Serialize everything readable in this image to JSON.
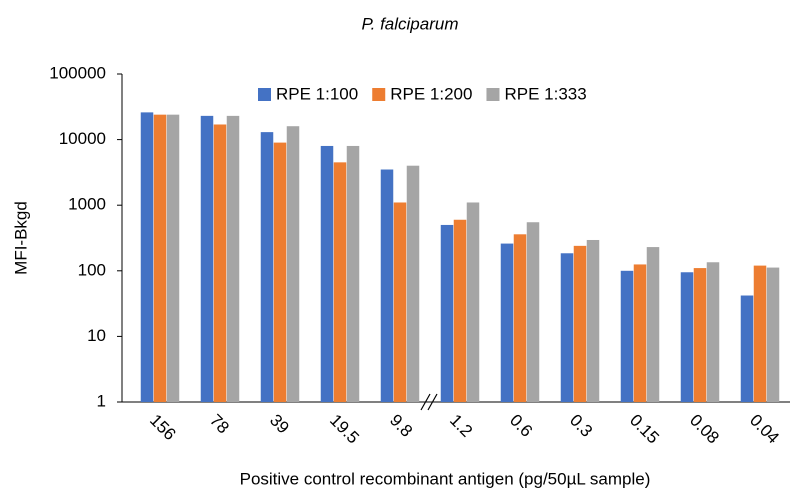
{
  "chart_data": {
    "type": "bar",
    "title": "P. falciparum",
    "x_label": "Positive control recombinant antigen (pg/50µL sample)",
    "y_label": "MFI-Bkgd",
    "categories": [
      "156",
      "78",
      "39",
      "19.5",
      "9.8",
      "1.2",
      "0.6",
      "0.3",
      "0.15",
      "0.08",
      "0.04"
    ],
    "series": [
      {
        "name": "RPE 1:100",
        "color": "#4472c4",
        "values": [
          26000,
          23000,
          13000,
          8000,
          3500,
          500,
          260,
          185,
          100,
          95,
          42
        ]
      },
      {
        "name": "RPE 1:200",
        "color": "#ed7d31",
        "values": [
          24000,
          17000,
          9000,
          4500,
          1100,
          600,
          360,
          240,
          125,
          110,
          120
        ]
      },
      {
        "name": "RPE 1:333",
        "color": "#a5a5a5",
        "values": [
          24000,
          23000,
          16000,
          8000,
          4000,
          1100,
          550,
          295,
          230,
          135,
          112
        ]
      }
    ],
    "yscale": "log",
    "ylim": [
      1,
      100000
    ],
    "yticks": [
      1,
      10,
      100,
      1000,
      10000,
      100000
    ],
    "grid": false,
    "legend": "top"
  }
}
